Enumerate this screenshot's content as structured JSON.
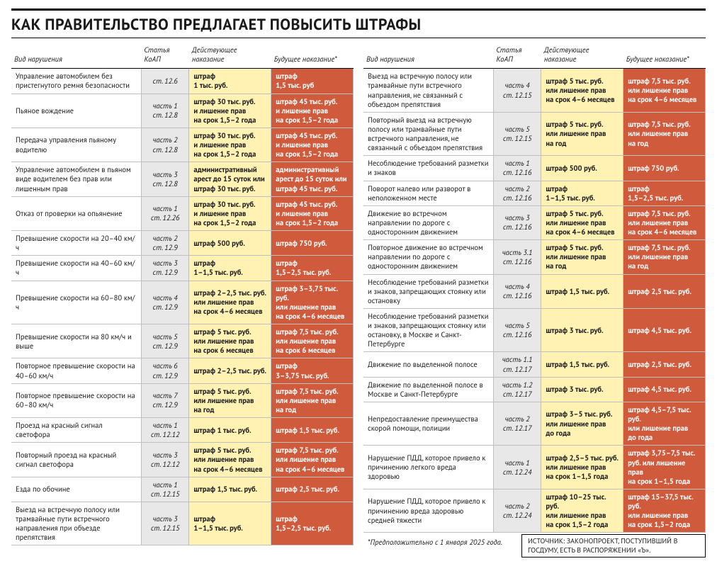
{
  "title": "КАК ПРАВИТЕЛЬСТВО ПРЕДЛАГАЕТ ПОВЫСИТЬ ШТРАФЫ",
  "headers": {
    "violation": "Вид нарушения",
    "article": "Статья КоАП",
    "current": "Действующее наказание",
    "future": "Будущее наказание*"
  },
  "colors": {
    "article_bg": "#e8e8e8",
    "current_bg": "#fff2b3",
    "future_bg": "#cf5a3c",
    "future_text": "#ffffff",
    "rule": "#bfbfbf"
  },
  "left": [
    {
      "v": "Управление автомобилем без пристегнутого ремня безопасности",
      "a": "ст. 12.6",
      "c": "штраф\n1 тыс. руб.",
      "f": "штраф\n1,5 тыс. руб"
    },
    {
      "v": "Пьяное вождение",
      "a": "часть 1\nст. 12.8",
      "c": "штраф 30 тыс. руб.\nи лишение прав\nна срок 1,5–2 года",
      "f": "штраф 45 тыс. руб.\nи лишение прав\nна срок 1,5–2 года"
    },
    {
      "v": "Передача управления пьяному водителю",
      "a": "часть 2\nст. 12.8",
      "c": "штраф 30 тыс. руб.\nи лишение прав\nна срок 1,5–2 года",
      "f": "штраф 45 тыс. руб.\nи лишение прав\nна срок 1,5–2 года"
    },
    {
      "v": "Управление автомобилем в пьяном виде водителем без прав или лишенным прав",
      "a": "часть 3\nст. 12.8",
      "c": "административный арест до 15 суток или штраф 30 тыс. руб.",
      "f": "административный арест до 15 суток или штраф 45 тыс. руб."
    },
    {
      "v": "Отказ от проверки на опьянение",
      "a": "часть 1\nст. 12.26",
      "c": "штраф 30 тыс. руб.\nи лишение прав\nна срок 1,5–2 года",
      "f": "штраф 45 тыс. руб.\nи лишение прав\nна срок 1,5–2 года"
    },
    {
      "v": "Превышение скорости на 20–40 км/ч",
      "a": "часть 2\nст. 12.9",
      "c": "штраф 500 руб.",
      "f": "штраф 750 руб."
    },
    {
      "v": "Превышение скорости на 40–60 км/ч",
      "a": "часть 3\nст. 12.9",
      "c": "штраф\n1–1,5 тыс. руб.",
      "f": "штраф\n1,5–2,5 тыс. руб."
    },
    {
      "v": "Превышение скорости на 60–80 км/ч",
      "a": "часть 4\nст. 12.9",
      "c": "штраф 2–2,5 тыс. руб.\nили лишение прав\nна срок 4–6 месяцев",
      "f": "штраф 3–3,75 тыс. руб.\nили лишение прав\nна срок 4–6 месяцев"
    },
    {
      "v": "Превышение скорости на 80 км/ч и выше",
      "a": "часть 5\nст. 12.9",
      "c": "штраф 5 тыс. руб.\nили лишение прав\nна срок 6 месяцев",
      "f": "штраф 7,5 тыс. руб.\nили лишение прав\nна срок 6 месяцев"
    },
    {
      "v": "Повторное превышение скорости на 40–60 км/ч",
      "a": "часть 6\nст. 12.9",
      "c": "штраф 2–2,5 тыс. руб.",
      "f": "штраф\n3–3,75 тыс. руб."
    },
    {
      "v": "Повторное превышение скорости на 60–80 км/ч",
      "a": "часть 7\nст. 12.9",
      "c": "штраф 5 тыс. руб.\nили лишение прав\nна год",
      "f": "штраф 7,5 тыс. руб.\nили лишение прав\nна год"
    },
    {
      "v": "Проезд на красный сигнал светофора",
      "a": "часть 1\nст. 12.12",
      "c": "штраф 1 тыс. руб.",
      "f": "штраф 1,5 тыс. руб."
    },
    {
      "v": "Повторный проезд на красный сигнал светофора",
      "a": "часть 3\nст. 12.12",
      "c": "штраф 5 тыс. руб.\nили лишение прав\nна срок 4–6 месяцев",
      "f": "штраф 7,5 тыс. руб.\nили лишение прав\nна срок 4–6 месяцев"
    },
    {
      "v": "Езда по обочине",
      "a": "часть 1\nст. 12.15",
      "c": "штраф 1,5 тыс. руб.",
      "f": "штраф 2,5 тыс. руб."
    },
    {
      "v": "Выезд на встречную полосу или трамвайные пути встречного направления при объезде препятствия",
      "a": "часть 3\nст. 12.15",
      "c": "штраф\n1–1,5 тыс. руб.",
      "f": "штраф\n1,5–2,5 тыс. руб."
    }
  ],
  "right": [
    {
      "v": "Выезд на встречную полосу или трамвайные пути встречного направления, не связанный с объездом препятствия",
      "a": "часть 4\nст. 12.15",
      "c": "штраф 5 тыс. руб.\nили лишение прав\nна срок 4–6 месяцев",
      "f": "штраф 7,5 тыс. руб.\nили лишение прав\nна срок 4–6 месяцев"
    },
    {
      "v": "Повторный выезд на встречную полосу или трамвайные пути встречного направления, не связанный с объездом препятствия",
      "a": "часть 5\nст. 12.15",
      "c": "штраф 5 тыс. руб.\nили лишение прав\nна год",
      "f": "штраф 7,5 тыс. руб.\nили лишение прав\nна год"
    },
    {
      "v": "Несоблюдение требований разметки и знаков",
      "a": "часть 1\nст. 12.16",
      "c": "штраф 500 руб.",
      "f": "штраф 750 руб."
    },
    {
      "v": "Поворот налево или разворот в неположенном месте",
      "a": "часть 2\nст. 12.16",
      "c": "штраф\n1–1,5 тыс. руб.",
      "f": "штраф\n1,5–2,5 тыс. руб."
    },
    {
      "v": "Движение во встречном направлении по дороге с односторонним движением",
      "a": "часть 3\nст. 12.16",
      "c": "штраф 5 тыс. руб.\nили лишение прав\nна срок 4–6 месяцев",
      "f": "штраф 7,5 тыс. руб.\nили лишение прав\nна срок 4–6 месяцев"
    },
    {
      "v": "Повторное движение во встречном направлении по дороге с односторонним движением",
      "a": "часть 3.1\nст. 12.16",
      "c": "штраф 5 тыс. руб.\nили лишение прав\nна год",
      "f": "штраф 7,5 тыс. руб.\nили лишение прав\nна год"
    },
    {
      "v": "Несоблюдение требований разметки и знаков, запрещающих стоянку или остановку",
      "a": "часть 4\nст. 12.16",
      "c": "штраф 1,5 тыс. руб.",
      "f": "штраф 2,5 тыс. руб."
    },
    {
      "v": "Несоблюдение требований разметки и знаков, запрещающих стоянку или остановку, в Москве и Санкт-Петербурге",
      "a": "часть 5\nст. 12.16",
      "c": "штраф 3 тыс. руб.",
      "f": "штраф 4,5 тыс. руб."
    },
    {
      "v": "Движение по выделенной полосе",
      "a": "часть 1.1\nст. 12.17",
      "c": "штраф 1,5 тыс. руб.",
      "f": "штраф 2,5 тыс. руб."
    },
    {
      "v": "Движение по выделенной полосе в Москве и Санкт-Петербурге",
      "a": "часть 1.2\nст. 12.17",
      "c": "штраф 3 тыс. руб.",
      "f": "штраф 4,5 тыс. руб."
    },
    {
      "v": "Непредоставление преимущества скорой помощи, полиции",
      "a": "часть 2\nст. 12.17",
      "c": "штраф 3–5 тыс. руб.\nили лишение прав\nдо года",
      "f": "штраф 4,5–7,5 тыс. руб.\nили лишение прав\nдо года"
    },
    {
      "v": "Нарушение ПДД, которое привело к причинению легкого вреда здоровью",
      "a": "часть 1\nст. 12.24",
      "c": "штраф 2,5–5 тыс. руб.\nили лишение прав\nна срок 1–1,5 года",
      "f": "штраф 3,75–7,5 тыс.\nруб. или лишение прав\nна срок 1–1,5 года"
    },
    {
      "v": "Нарушение ПДД, которое привело к причинению вреда здоровью средней тяжести",
      "a": "часть 2\nст. 12.24",
      "c": "штраф 10–25 тыс. руб.\nили лишение прав\nна срок 1,5–2 года",
      "f": "штраф 15–37,5 тыс. руб.\nили лишение прав\nна срок 1,5–2 года"
    }
  ],
  "footnote": "*Предположительно с 1 января 2025 года.",
  "source": "ИСТОЧНИК: ЗАКОНОПРОЕКТ, ПОСТУПИВШИЙ В ГОСДУМУ, ЕСТЬ В РАСПОРЯЖЕНИИ «Ъ»."
}
